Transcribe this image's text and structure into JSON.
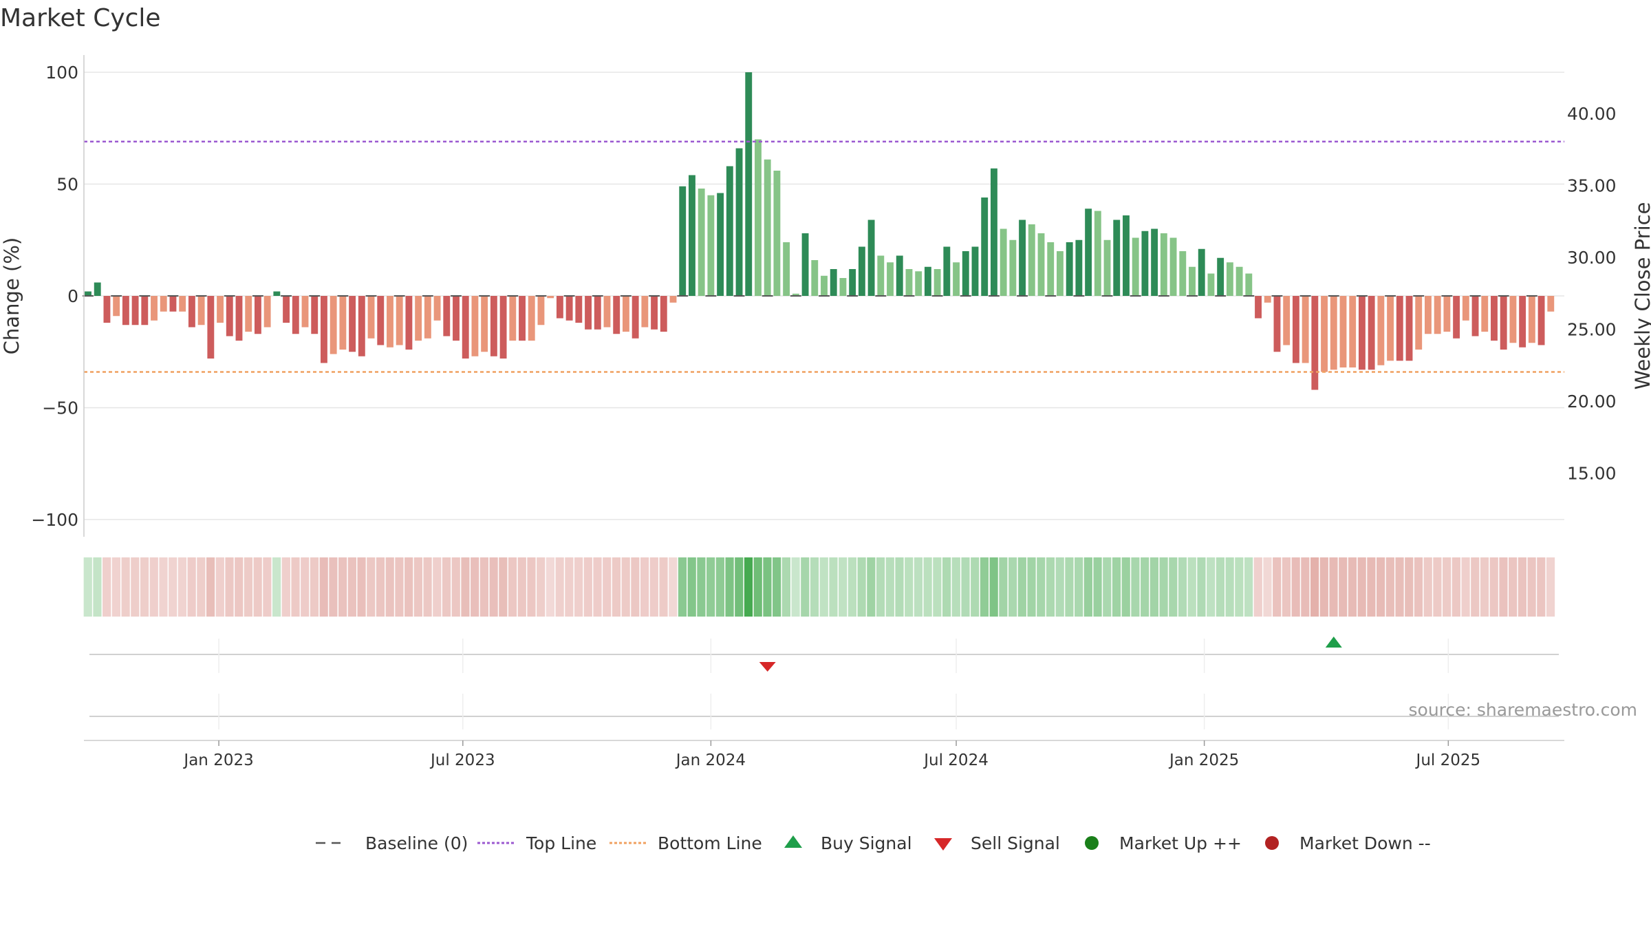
{
  "page": {
    "title": "Market Cycle",
    "source_note": "source: sharemaestro.com"
  },
  "colors": {
    "up_strong": "#2e8b57",
    "up_light": "#86c487",
    "down_strong": "#cd5c5c",
    "down_light": "#e9967a",
    "top_line": "#9b59d0",
    "bottom_line": "#f0a060",
    "baseline": "#555555",
    "buy": "#1e9e4a",
    "sell": "#d62728",
    "market_up": "#1a7f1a",
    "market_down": "#b22222",
    "grid": "#e6e6e6",
    "text": "#333333"
  },
  "chart_data": {
    "type": "bar",
    "title": "Market Cycle",
    "ylabel": "Change (%)",
    "y2label": "Weekly Close Price",
    "ylim": [
      -100,
      100
    ],
    "yticks": [
      100,
      50,
      0,
      -50,
      -100
    ],
    "ytick_labels": [
      "100",
      "50",
      "0",
      "−50",
      "−100"
    ],
    "y2lim": [
      11.0,
      43.5
    ],
    "y2ticks": [
      40,
      35,
      30,
      25,
      20,
      15
    ],
    "y2tick_labels": [
      "40.00",
      "35.00",
      "30.00",
      "25.00",
      "20.00",
      "15.00"
    ],
    "x_range": [
      "2022-09-26",
      "2025-09-22"
    ],
    "xticks": [
      "2023-01-01",
      "2023-07-01",
      "2024-01-01",
      "2024-07-01",
      "2025-01-01",
      "2025-07-01"
    ],
    "xtick_labels": [
      "Jan 2023",
      "Jul 2023",
      "Jan 2024",
      "Jul 2024",
      "Jan 2025",
      "Jul 2025"
    ],
    "start_week": "2022-09-26",
    "week_interval_days": 7,
    "top_line": 69,
    "bottom_line": -34,
    "baseline": 0,
    "values": [
      2,
      6,
      -12,
      -9,
      -13,
      -13,
      -13,
      -11,
      -7,
      -7,
      -7,
      -14,
      -13,
      -28,
      -12,
      -18,
      -20,
      -16,
      -17,
      -14,
      2,
      -12,
      -17,
      -14,
      -17,
      -30,
      -26,
      -24,
      -25,
      -27,
      -19,
      -22,
      -23,
      -22,
      -24,
      -20,
      -19,
      -11,
      -18,
      -20,
      -28,
      -27,
      -25,
      -27,
      -28,
      -20,
      -20,
      -20,
      -13,
      -1,
      -10,
      -11,
      -12,
      -15,
      -15,
      -14,
      -17,
      -16,
      -19,
      -14,
      -15,
      -16,
      -3,
      49,
      54,
      48,
      45,
      46,
      58,
      66,
      100,
      70,
      61,
      56,
      24,
      1,
      28,
      16,
      9,
      12,
      8,
      12,
      22,
      34,
      18,
      15,
      18,
      12,
      11,
      13,
      12,
      22,
      15,
      20,
      22,
      44,
      57,
      30,
      25,
      34,
      32,
      28,
      24,
      20,
      24,
      25,
      39,
      38,
      25,
      34,
      36,
      26,
      29,
      30,
      28,
      26,
      20,
      13,
      21,
      10,
      17,
      15,
      13,
      10,
      -10,
      -3,
      -25,
      -22,
      -30,
      -30,
      -42,
      -34,
      -33,
      -32,
      -32,
      -33,
      -33,
      -31,
      -29,
      -29,
      -29,
      -24,
      -17,
      -17,
      -16,
      -19,
      -11,
      -18,
      -16,
      -20,
      -24,
      -21,
      -23,
      -21,
      -22,
      -7
    ],
    "strong_flags": [
      1,
      1,
      1,
      0,
      1,
      1,
      1,
      0,
      0,
      1,
      0,
      1,
      0,
      1,
      0,
      1,
      1,
      0,
      1,
      0,
      1,
      1,
      1,
      0,
      1,
      1,
      0,
      0,
      1,
      1,
      0,
      1,
      0,
      0,
      1,
      0,
      0,
      0,
      1,
      1,
      1,
      0,
      0,
      1,
      1,
      0,
      1,
      0,
      0,
      0,
      1,
      1,
      1,
      1,
      1,
      0,
      1,
      0,
      1,
      0,
      1,
      1,
      0,
      1,
      1,
      0,
      0,
      1,
      1,
      1,
      1,
      0,
      0,
      0,
      0,
      0,
      1,
      0,
      0,
      1,
      0,
      1,
      1,
      1,
      0,
      0,
      1,
      0,
      0,
      1,
      0,
      1,
      0,
      1,
      1,
      1,
      1,
      0,
      0,
      1,
      0,
      0,
      0,
      0,
      1,
      1,
      1,
      0,
      0,
      1,
      1,
      0,
      1,
      1,
      0,
      0,
      0,
      0,
      1,
      0,
      1,
      0,
      0,
      0,
      1,
      0,
      1,
      0,
      1,
      0,
      1,
      0,
      0,
      0,
      0,
      1,
      1,
      0,
      0,
      1,
      1,
      0,
      0,
      0,
      0,
      1,
      0,
      1,
      0,
      1,
      1,
      0,
      1,
      0,
      1,
      0
    ],
    "signals": [
      {
        "type": "sell",
        "date": "2024-02-12"
      },
      {
        "type": "buy",
        "date": "2025-04-07"
      }
    ],
    "legend": [
      "Baseline (0)",
      "Top Line",
      "Bottom Line",
      "Buy Signal",
      "Sell Signal",
      "Market Up ++",
      "Market Down --"
    ],
    "legend_placement": "bottom-center",
    "grid": true
  }
}
